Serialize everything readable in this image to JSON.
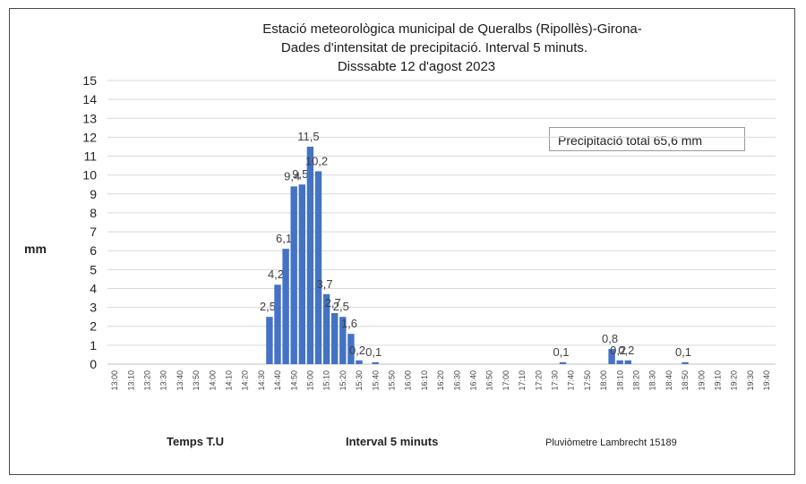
{
  "chart_data": {
    "type": "bar",
    "title_lines": [
      "Estació meteorològica municipal de Queralbs (Ripollès)-Girona-",
      "Dades d'intensitat de precipitació. Interval 5 minuts.",
      "Disssabte 12 d'agost 2023"
    ],
    "ylabel": "mm",
    "xlabel": "Temps T.U",
    "xlabel2": "Interval 5 minuts",
    "note": "Pluviòmetre Lambrecht 15189",
    "annotation": "Precipitació total 65,6 mm",
    "ylim": [
      0,
      15
    ],
    "yticks": [
      "0",
      "1",
      "2",
      "3",
      "4",
      "5",
      "6",
      "7",
      "8",
      "9",
      "10",
      "11",
      "12",
      "13",
      "14",
      "15"
    ],
    "grid": true,
    "bar_color": "#4472c4",
    "xtick_labels": [
      "13:00",
      "13:10",
      "13:20",
      "13:30",
      "13:40",
      "13:50",
      "14:00",
      "14:10",
      "14:20",
      "14:30",
      "14:40",
      "14:50",
      "15:00",
      "15:10",
      "15:20",
      "15:30",
      "15:40",
      "15:50",
      "16:00",
      "16:10",
      "16:20",
      "16:30",
      "16:40",
      "16:50",
      "17:00",
      "17:10",
      "17:20",
      "17:30",
      "17:40",
      "17:50",
      "18:00",
      "18:10",
      "18:20",
      "18:30",
      "18:40",
      "18:50",
      "19:00",
      "19:10",
      "19:20",
      "19:30",
      "19:40"
    ],
    "series": [
      {
        "values": [
          [
            "14:35",
            2.5,
            "2,5"
          ],
          [
            "14:40",
            4.2,
            "4,2"
          ],
          [
            "14:45",
            6.1,
            "6,1"
          ],
          [
            "14:50",
            9.4,
            "9,4"
          ],
          [
            "14:55",
            9.5,
            "9,5"
          ],
          [
            "15:00",
            11.5,
            "11,5"
          ],
          [
            "15:05",
            10.2,
            "10,2"
          ],
          [
            "15:10",
            3.7,
            "3,7"
          ],
          [
            "15:15",
            2.7,
            "2,7"
          ],
          [
            "15:20",
            2.5,
            "2,5"
          ],
          [
            "15:25",
            1.6,
            "1,6"
          ],
          [
            "15:30",
            0.2,
            "0,2"
          ],
          [
            "15:40",
            0.1,
            "0,1"
          ],
          [
            "17:35",
            0.1,
            "0,1"
          ],
          [
            "18:05",
            0.8,
            "0,8"
          ],
          [
            "18:10",
            0.2,
            "0,2"
          ],
          [
            "18:15",
            0.2,
            "0,2"
          ],
          [
            "18:50",
            0.1,
            "0,1"
          ]
        ]
      }
    ]
  }
}
